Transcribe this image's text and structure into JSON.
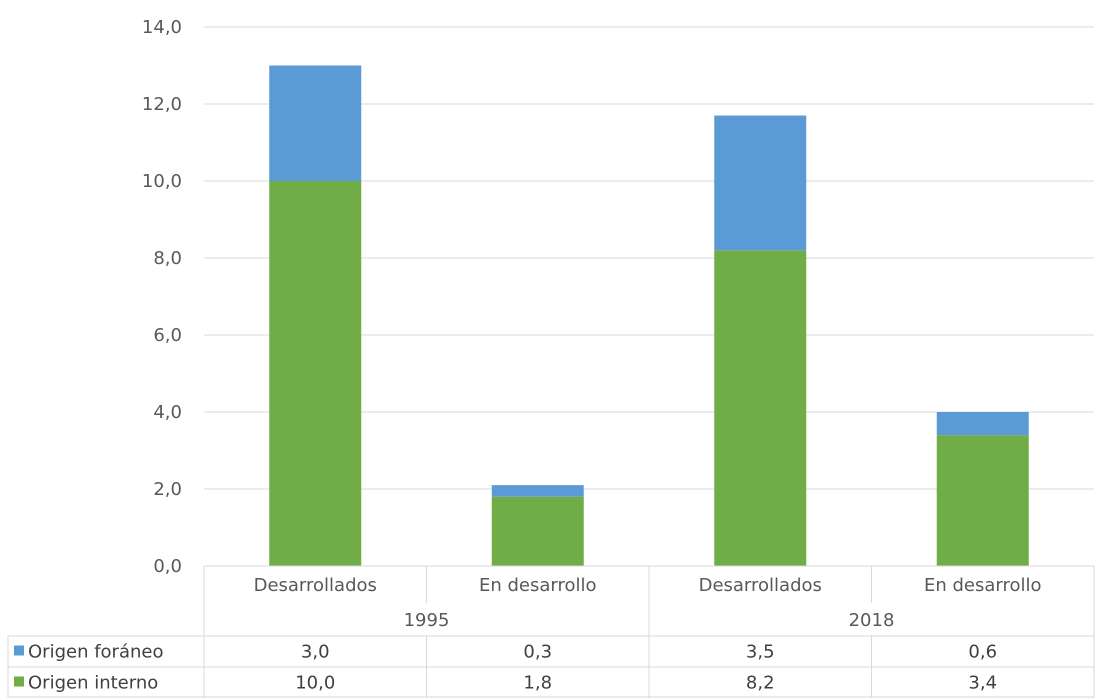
{
  "chart_data": {
    "type": "bar",
    "stacked": true,
    "groups": [
      {
        "label": "1995",
        "categories": [
          "Desarrollados",
          "En desarrollo"
        ]
      },
      {
        "label": "2018",
        "categories": [
          "Desarrollados",
          "En desarrollo"
        ]
      }
    ],
    "categories": [
      "Desarrollados",
      "En desarrollo",
      "Desarrollados",
      "En desarrollo"
    ],
    "series": [
      {
        "name": "Origen interno",
        "color": "#70ad47",
        "values": [
          10.0,
          1.8,
          8.2,
          3.4
        ],
        "labels": [
          "10,0",
          "1,8",
          "8,2",
          "3,4"
        ]
      },
      {
        "name": "Origen foráneo",
        "color": "#5b9bd5",
        "values": [
          3.0,
          0.3,
          3.5,
          0.6
        ],
        "labels": [
          "3,0",
          "0,3",
          "3,5",
          "0,6"
        ]
      }
    ],
    "y_ticks": [
      "0,0",
      "2,0",
      "4,0",
      "6,0",
      "8,0",
      "10,0",
      "12,0",
      "14,0"
    ],
    "ylim": [
      0,
      14
    ],
    "grid": true,
    "legend": "data-table",
    "table_rows_order": [
      "Origen foráneo",
      "Origen interno"
    ]
  }
}
